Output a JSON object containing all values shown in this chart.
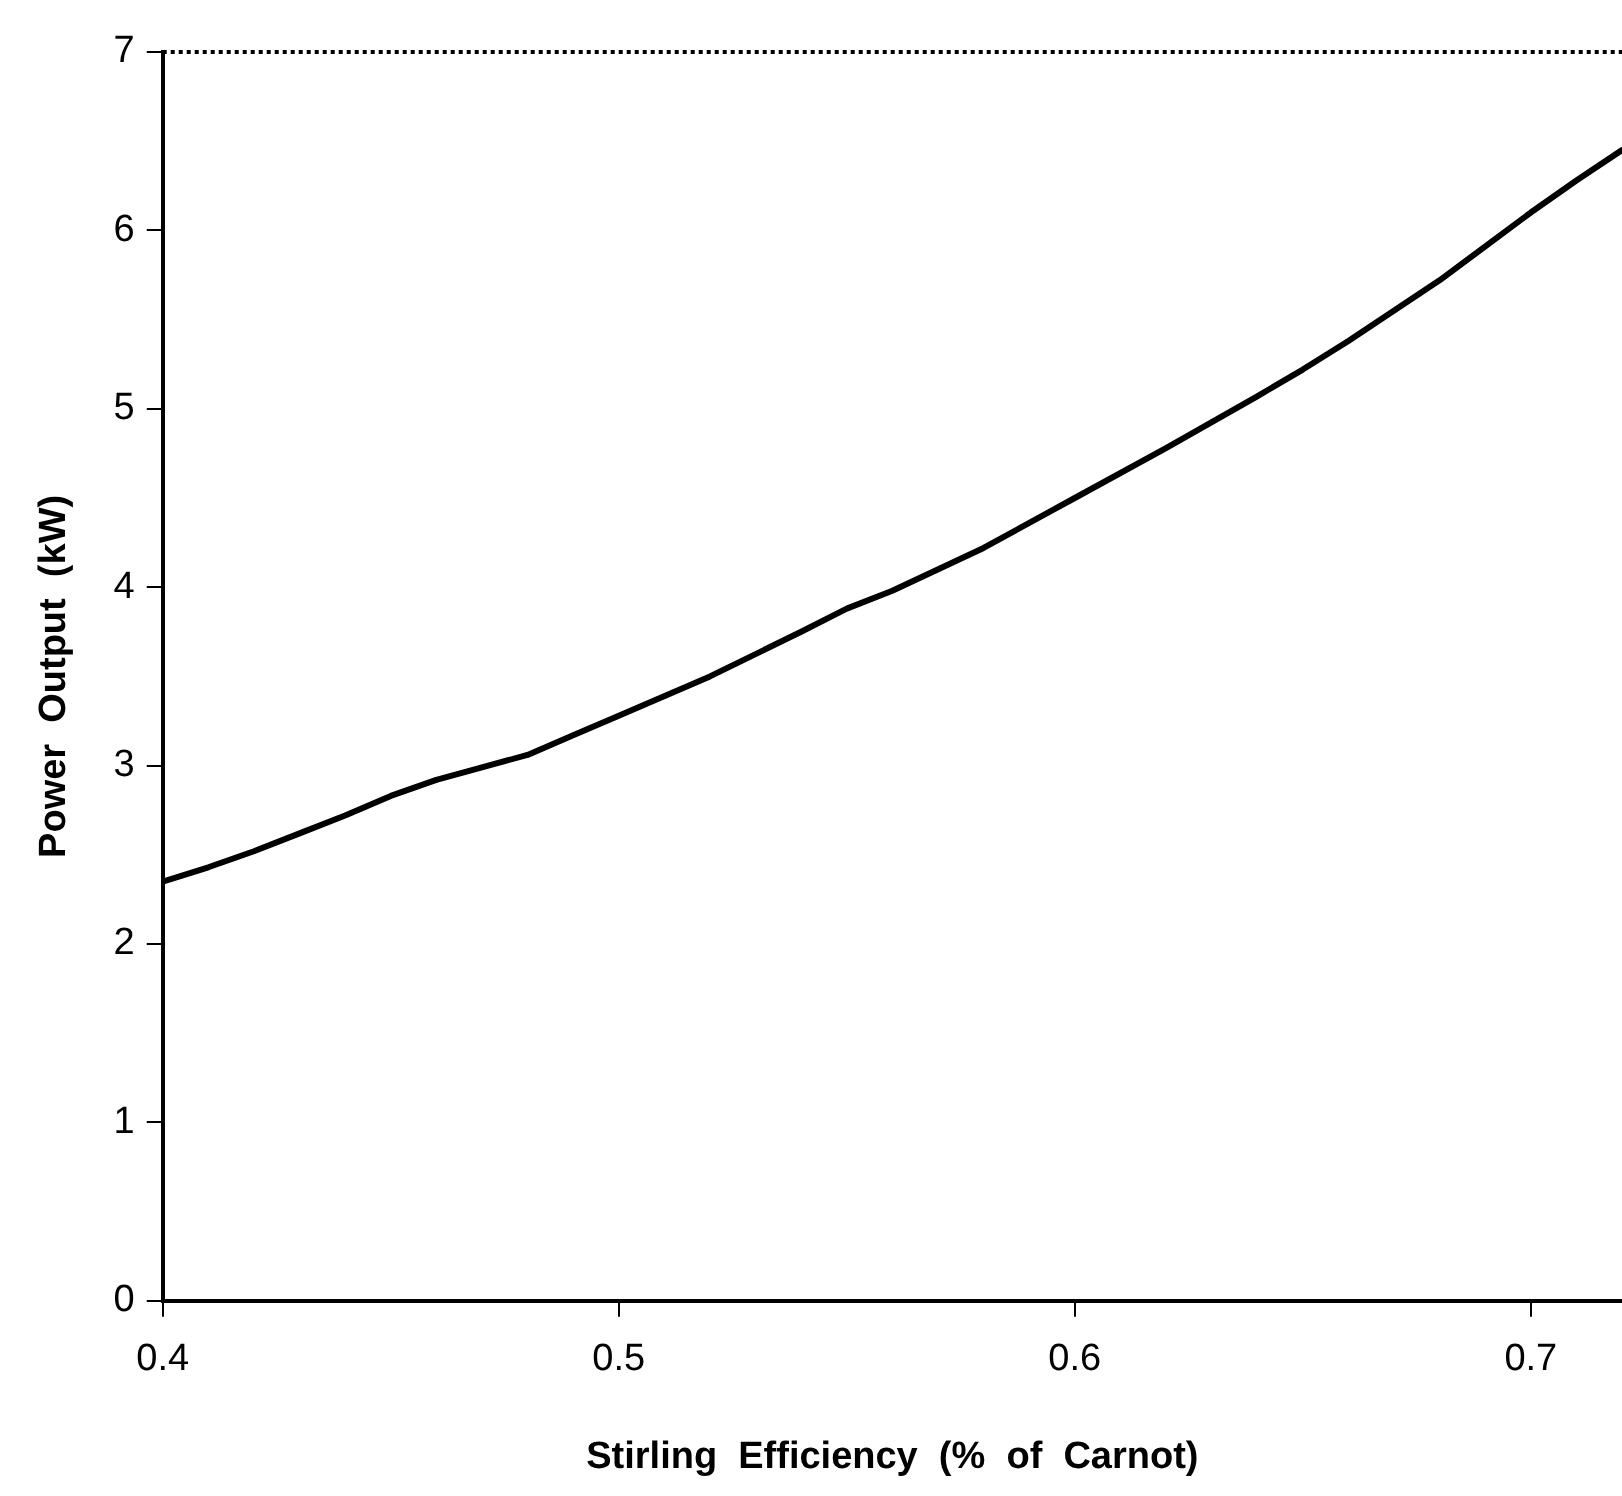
{
  "chart_data": {
    "type": "line",
    "xlabel": "Stirling  Efficiency  (%  of  Carnot)",
    "ylabel": "Power  Output  (kW)",
    "x": [
      0.4,
      0.41,
      0.42,
      0.43,
      0.44,
      0.45,
      0.46,
      0.47,
      0.48,
      0.49,
      0.5,
      0.52,
      0.54,
      0.55,
      0.56,
      0.58,
      0.6,
      0.62,
      0.64,
      0.65,
      0.66,
      0.68,
      0.7,
      0.71,
      0.72
    ],
    "series": [
      {
        "color": "#000000",
        "values": [
          2.35,
          2.43,
          2.52,
          2.62,
          2.72,
          2.83,
          2.92,
          2.99,
          3.06,
          3.17,
          3.28,
          3.5,
          3.75,
          3.88,
          3.98,
          4.22,
          4.5,
          4.78,
          5.07,
          5.22,
          5.38,
          5.72,
          6.1,
          6.28,
          6.45
        ]
      }
    ],
    "xlim": [
      0.4,
      0.72
    ],
    "xticks": [
      0.4,
      0.5,
      0.6,
      0.7
    ],
    "ylim": [
      0,
      7
    ],
    "yticks": [
      0,
      1,
      2,
      3,
      4,
      5,
      6,
      7
    ],
    "grid": false,
    "legend": false,
    "marker": "none",
    "line_style": "solid"
  }
}
